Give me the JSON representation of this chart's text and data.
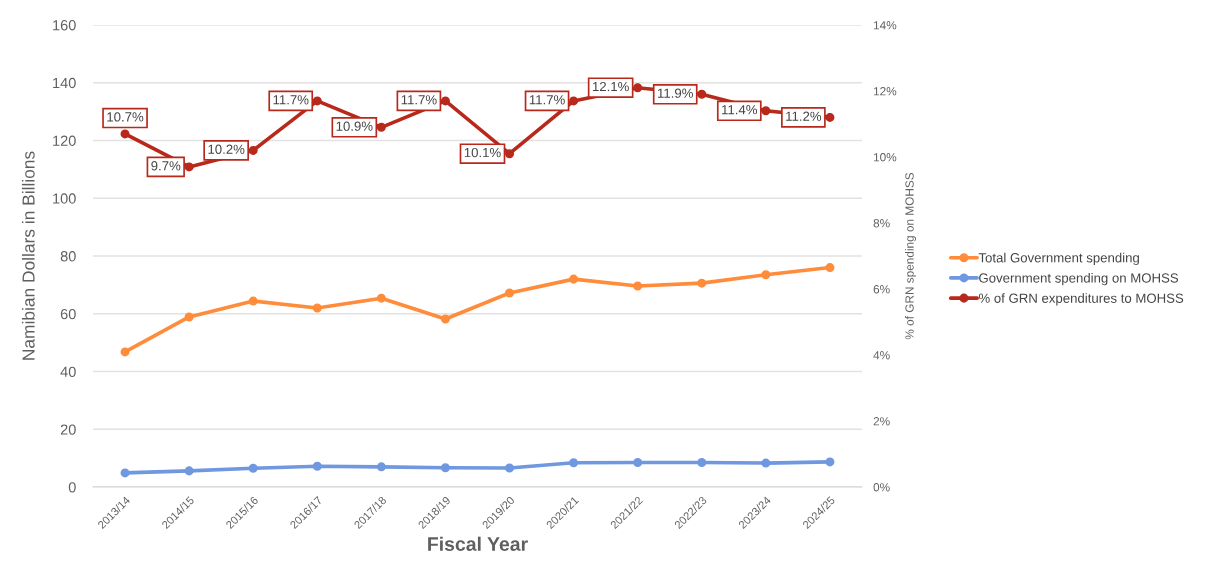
{
  "chart_data": {
    "type": "line",
    "xlabel": "Fiscal Year",
    "ylabel": "Namibian Dollars in Billions",
    "y2label": "% of GRN spending on MOHSS",
    "categories": [
      "2013/14",
      "2014/15",
      "2015/16",
      "2016/17",
      "2017/18",
      "2018/19",
      "2019/20",
      "2020/21",
      "2021/22",
      "2022/23",
      "2023/24",
      "2024/25"
    ],
    "series": [
      {
        "name": "Total Government spending",
        "color": "#ff8c3a",
        "values": [
          46.8,
          58.9,
          64.4,
          62.0,
          65.4,
          58.2,
          67.2,
          72.0,
          69.6,
          70.6,
          73.5,
          76.0
        ]
      },
      {
        "name": "Government spending on MOHSS",
        "color": "#6f98e0",
        "values": [
          4.9,
          5.6,
          6.5,
          7.2,
          7.0,
          6.7,
          6.6,
          8.4,
          8.5,
          8.5,
          8.3,
          8.7
        ]
      },
      {
        "name": "% of GRN expenditures to MOHSS",
        "color": "#b8291b",
        "axis": "y2",
        "values": [
          10.7,
          9.7,
          10.2,
          11.7,
          10.9,
          11.7,
          10.1,
          11.7,
          12.1,
          11.9,
          11.4,
          11.2
        ],
        "value_labels": [
          "10.7%",
          "9.7%",
          "10.2%",
          "11.7%",
          "10.9%",
          "11.7%",
          "10.1%",
          "11.7%",
          "12.1%",
          "11.9%",
          "11.4%",
          "11.2%"
        ]
      }
    ],
    "ylim": [
      0,
      160
    ],
    "yticks": [
      0,
      20,
      40,
      60,
      80,
      100,
      120,
      140,
      160
    ],
    "y2lim": [
      0,
      14
    ],
    "y2ticks": [
      {
        "value": 0,
        "label": "0%"
      },
      {
        "value": 2,
        "label": "2%"
      },
      {
        "value": 4,
        "label": "4%"
      },
      {
        "value": 6,
        "label": "6%"
      },
      {
        "value": 8,
        "label": "8%"
      },
      {
        "value": 10,
        "label": "10%"
      },
      {
        "value": 12,
        "label": "12%"
      },
      {
        "value": 14,
        "label": "14%"
      }
    ],
    "grid": "y",
    "legend": "right",
    "marker": "circle",
    "line_style": "solid"
  }
}
